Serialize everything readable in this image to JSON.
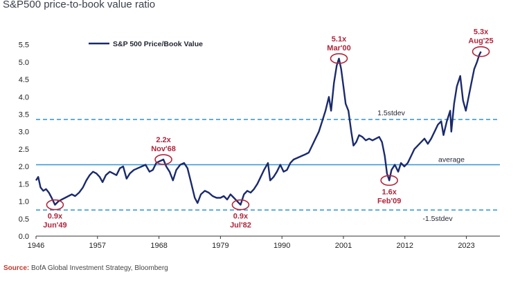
{
  "title": "S&P500 price-to-book value ratio",
  "source": {
    "label": "Source:",
    "text": " BofA Global Investment Strategy, Bloomberg"
  },
  "chart_data": {
    "type": "line",
    "series": [
      {
        "name": "S&P 500 Price/Book Value",
        "color": "#1a2a6c",
        "points": [
          [
            1946.0,
            1.6
          ],
          [
            1946.4,
            1.7
          ],
          [
            1946.8,
            1.4
          ],
          [
            1947.3,
            1.3
          ],
          [
            1947.8,
            1.35
          ],
          [
            1948.3,
            1.25
          ],
          [
            1948.8,
            1.1
          ],
          [
            1949.4,
            0.9
          ],
          [
            1950.0,
            1.0
          ],
          [
            1950.6,
            1.05
          ],
          [
            1951.2,
            1.1
          ],
          [
            1951.8,
            1.15
          ],
          [
            1952.4,
            1.2
          ],
          [
            1953.0,
            1.15
          ],
          [
            1953.7,
            1.25
          ],
          [
            1954.4,
            1.4
          ],
          [
            1955.0,
            1.6
          ],
          [
            1955.6,
            1.75
          ],
          [
            1956.2,
            1.85
          ],
          [
            1956.8,
            1.8
          ],
          [
            1957.4,
            1.7
          ],
          [
            1957.9,
            1.55
          ],
          [
            1958.5,
            1.75
          ],
          [
            1959.2,
            1.85
          ],
          [
            1959.8,
            1.8
          ],
          [
            1960.4,
            1.75
          ],
          [
            1961.0,
            1.95
          ],
          [
            1961.6,
            2.0
          ],
          [
            1962.2,
            1.65
          ],
          [
            1962.8,
            1.8
          ],
          [
            1963.5,
            1.9
          ],
          [
            1964.2,
            1.95
          ],
          [
            1964.9,
            2.0
          ],
          [
            1965.6,
            2.05
          ],
          [
            1966.3,
            1.85
          ],
          [
            1966.9,
            1.9
          ],
          [
            1967.5,
            2.1
          ],
          [
            1968.1,
            2.15
          ],
          [
            1968.8,
            2.2
          ],
          [
            1969.3,
            2.0
          ],
          [
            1969.9,
            1.85
          ],
          [
            1970.5,
            1.6
          ],
          [
            1971.1,
            1.9
          ],
          [
            1971.8,
            2.05
          ],
          [
            1972.5,
            2.1
          ],
          [
            1973.1,
            1.95
          ],
          [
            1973.8,
            1.5
          ],
          [
            1974.4,
            1.1
          ],
          [
            1974.9,
            0.95
          ],
          [
            1975.5,
            1.2
          ],
          [
            1976.2,
            1.3
          ],
          [
            1976.9,
            1.25
          ],
          [
            1977.6,
            1.15
          ],
          [
            1978.3,
            1.1
          ],
          [
            1979.0,
            1.1
          ],
          [
            1979.6,
            1.15
          ],
          [
            1980.2,
            1.05
          ],
          [
            1980.8,
            1.2
          ],
          [
            1981.4,
            1.1
          ],
          [
            1982.0,
            1.0
          ],
          [
            1982.6,
            0.9
          ],
          [
            1983.2,
            1.2
          ],
          [
            1983.8,
            1.3
          ],
          [
            1984.4,
            1.25
          ],
          [
            1985.0,
            1.35
          ],
          [
            1985.6,
            1.5
          ],
          [
            1986.2,
            1.7
          ],
          [
            1986.8,
            1.9
          ],
          [
            1987.5,
            2.1
          ],
          [
            1987.9,
            1.6
          ],
          [
            1988.5,
            1.7
          ],
          [
            1989.1,
            1.85
          ],
          [
            1989.7,
            2.05
          ],
          [
            1990.3,
            1.85
          ],
          [
            1990.9,
            1.9
          ],
          [
            1991.5,
            2.1
          ],
          [
            1992.1,
            2.2
          ],
          [
            1992.8,
            2.25
          ],
          [
            1993.5,
            2.3
          ],
          [
            1994.2,
            2.35
          ],
          [
            1994.8,
            2.4
          ],
          [
            1995.4,
            2.6
          ],
          [
            1996.0,
            2.8
          ],
          [
            1996.6,
            3.0
          ],
          [
            1997.2,
            3.3
          ],
          [
            1997.8,
            3.6
          ],
          [
            1998.4,
            4.0
          ],
          [
            1998.8,
            3.6
          ],
          [
            1999.3,
            4.4
          ],
          [
            1999.8,
            4.9
          ],
          [
            2000.2,
            5.1
          ],
          [
            2000.6,
            4.8
          ],
          [
            2001.0,
            4.3
          ],
          [
            2001.4,
            3.8
          ],
          [
            2001.9,
            3.6
          ],
          [
            2002.4,
            3.0
          ],
          [
            2002.8,
            2.6
          ],
          [
            2003.3,
            2.7
          ],
          [
            2003.8,
            2.9
          ],
          [
            2004.4,
            2.85
          ],
          [
            2005.0,
            2.75
          ],
          [
            2005.6,
            2.8
          ],
          [
            2006.2,
            2.75
          ],
          [
            2006.8,
            2.8
          ],
          [
            2007.4,
            2.85
          ],
          [
            2007.9,
            2.7
          ],
          [
            2008.4,
            2.3
          ],
          [
            2008.8,
            1.8
          ],
          [
            2009.2,
            1.6
          ],
          [
            2009.6,
            1.9
          ],
          [
            2010.2,
            2.05
          ],
          [
            2010.8,
            1.85
          ],
          [
            2011.3,
            2.1
          ],
          [
            2011.9,
            2.0
          ],
          [
            2012.5,
            2.1
          ],
          [
            2013.1,
            2.3
          ],
          [
            2013.7,
            2.5
          ],
          [
            2014.3,
            2.6
          ],
          [
            2014.9,
            2.7
          ],
          [
            2015.5,
            2.8
          ],
          [
            2016.1,
            2.65
          ],
          [
            2016.7,
            2.8
          ],
          [
            2017.3,
            3.0
          ],
          [
            2017.9,
            3.2
          ],
          [
            2018.5,
            3.3
          ],
          [
            2018.9,
            2.9
          ],
          [
            2019.5,
            3.3
          ],
          [
            2020.1,
            3.6
          ],
          [
            2020.3,
            3.0
          ],
          [
            2020.8,
            3.8
          ],
          [
            2021.3,
            4.3
          ],
          [
            2021.9,
            4.6
          ],
          [
            2022.4,
            3.9
          ],
          [
            2022.9,
            3.6
          ],
          [
            2023.4,
            4.0
          ],
          [
            2023.9,
            4.4
          ],
          [
            2024.4,
            4.8
          ],
          [
            2024.9,
            5.0
          ],
          [
            2025.3,
            5.2
          ],
          [
            2025.6,
            5.3
          ]
        ]
      }
    ],
    "xticks": [
      "1946",
      "1957",
      "1968",
      "1979",
      "1990",
      "2001",
      "2012",
      "2023"
    ],
    "xtick_values": [
      1946,
      1957,
      1968,
      1979,
      1990,
      2001,
      2012,
      2023
    ],
    "yticks": [
      "0.0",
      "0.5",
      "1.0",
      "1.5",
      "2.0",
      "2.5",
      "3.0",
      "3.5",
      "4.0",
      "4.5",
      "5.0",
      "5.5"
    ],
    "ytick_values": [
      0,
      0.5,
      1,
      1.5,
      2,
      2.5,
      3,
      3.5,
      4,
      4.5,
      5,
      5.5
    ],
    "xlim": [
      1946,
      2029
    ],
    "ylim": [
      0,
      5.75
    ],
    "reference_lines": [
      {
        "label": "1.5stdev",
        "y": 3.35,
        "style": "dashed",
        "color": "#3b9bd6"
      },
      {
        "label": "average",
        "y": 2.05,
        "style": "solid",
        "color": "#3b9bd6"
      },
      {
        "label": "-1.5stdev",
        "y": 0.75,
        "style": "dashed",
        "color": "#3b9bd6"
      }
    ],
    "annotations": [
      {
        "value": "0.9x",
        "date": "Jun'49",
        "x": 1949.4,
        "y": 0.9,
        "label_pos": "below"
      },
      {
        "value": "2.2x",
        "date": "Nov'68",
        "x": 1968.8,
        "y": 2.2,
        "label_pos": "above"
      },
      {
        "value": "0.9x",
        "date": "Jul'82",
        "x": 1982.6,
        "y": 0.9,
        "label_pos": "below"
      },
      {
        "value": "5.1x",
        "date": "Mar'00",
        "x": 2000.2,
        "y": 5.1,
        "label_pos": "above"
      },
      {
        "value": "1.6x",
        "date": "Feb'09",
        "x": 2009.2,
        "y": 1.6,
        "label_pos": "below"
      },
      {
        "value": "5.3x",
        "date": "Aug'25",
        "x": 2025.6,
        "y": 5.3,
        "label_pos": "above"
      }
    ],
    "legend": {
      "position": "top-left"
    },
    "colors": {
      "series": "#1a2a6c",
      "reference": "#3b9bd6",
      "annotation": "#b0243a"
    }
  }
}
